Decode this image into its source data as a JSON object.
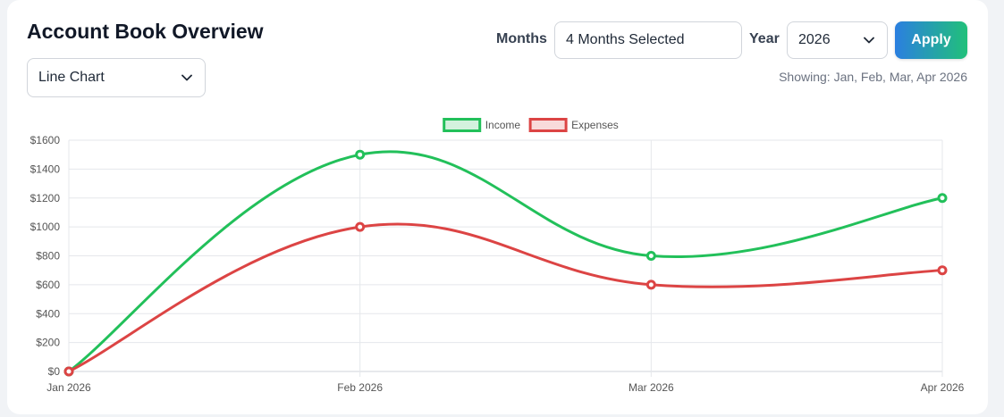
{
  "header": {
    "title": "Account Book Overview",
    "chart_type_selected": "Line Chart",
    "months_label": "Months",
    "months_value": "4 Months Selected",
    "year_label": "Year",
    "year_value": "2026",
    "apply_label": "Apply",
    "showing_text": "Showing: Jan, Feb, Mar, Apr 2026"
  },
  "chart_data": {
    "type": "line",
    "categories": [
      "Jan 2026",
      "Feb 2026",
      "Mar 2026",
      "Apr 2026"
    ],
    "series": [
      {
        "name": "Income",
        "values": [
          0,
          1500,
          800,
          1200
        ],
        "color": "#22c05a"
      },
      {
        "name": "Expenses",
        "values": [
          0,
          1000,
          600,
          700
        ],
        "color": "#dc4444"
      }
    ],
    "ylim": [
      0,
      1600
    ],
    "yticks": [
      0,
      200,
      400,
      600,
      800,
      1000,
      1200,
      1400,
      1600
    ],
    "ytick_labels": [
      "$0",
      "$200",
      "$400",
      "$600",
      "$800",
      "$1000",
      "$1200",
      "$1400",
      "$1600"
    ],
    "legend_position": "top-center",
    "grid": true,
    "curve": "smooth"
  }
}
